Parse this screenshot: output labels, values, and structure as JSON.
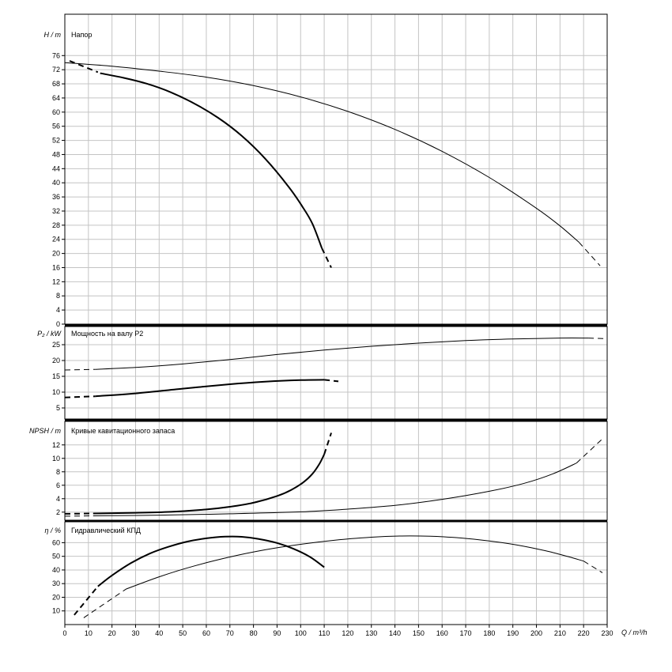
{
  "page": {
    "background": "#ffffff",
    "colors": {
      "grid": "#c4c4c4",
      "axis": "#000000",
      "curve": "#000000"
    },
    "x_axis": {
      "label": "Q / m³/h",
      "min": 0,
      "max": 230,
      "tick_step": 10,
      "tick_labels": [
        "0",
        "10",
        "20",
        "30",
        "40",
        "50",
        "60",
        "70",
        "80",
        "90",
        "100",
        "110",
        "120",
        "130",
        "140",
        "150",
        "160",
        "170",
        "180",
        "190",
        "200",
        "210",
        "220",
        "230"
      ]
    }
  },
  "chart_data": [
    {
      "type": "line",
      "title": "Напор",
      "ylabel": "H / m",
      "ylim": [
        0,
        87.7
      ],
      "yticks": [
        0,
        4,
        8,
        12,
        16,
        20,
        24,
        28,
        32,
        36,
        40,
        44,
        48,
        52,
        56,
        60,
        64,
        68,
        72,
        76
      ],
      "grid": true,
      "series": [
        {
          "name": "head-curve-full",
          "width": 1,
          "segments": [
            {
              "dash": false,
              "points": [
                [
                  0,
                  74
                ],
                [
                  20,
                  73
                ],
                [
                  40,
                  71.6
                ],
                [
                  60,
                  69.9
                ],
                [
                  80,
                  67.5
                ],
                [
                  100,
                  64.3
                ],
                [
                  120,
                  60.2
                ],
                [
                  140,
                  55.1
                ],
                [
                  160,
                  48.9
                ],
                [
                  180,
                  41.5
                ],
                [
                  200,
                  32.8
                ],
                [
                  210,
                  27.8
                ],
                [
                  218,
                  23.2
                ]
              ]
            },
            {
              "dash": true,
              "points": [
                [
                  218,
                  23.2
                ],
                [
                  227,
                  16.5
                ]
              ]
            }
          ]
        },
        {
          "name": "head-curve-selected",
          "width": 2,
          "segments": [
            {
              "dash": true,
              "points": [
                [
                  2,
                  74.5
                ],
                [
                  14,
                  71.3
                ]
              ]
            },
            {
              "dash": false,
              "points": [
                [
                  15,
                  71
                ],
                [
                  25,
                  69.7
                ],
                [
                  35,
                  68
                ],
                [
                  45,
                  65.6
                ],
                [
                  55,
                  62.4
                ],
                [
                  65,
                  58.4
                ],
                [
                  75,
                  53.3
                ],
                [
                  85,
                  46.8
                ],
                [
                  95,
                  38.8
                ],
                [
                  101,
                  33
                ],
                [
                  105,
                  28.4
                ],
                [
                  109,
                  21.5
                ]
              ]
            },
            {
              "dash": true,
              "points": [
                [
                  109,
                  21.5
                ],
                [
                  113,
                  16
                ]
              ]
            }
          ]
        }
      ]
    },
    {
      "type": "line",
      "title": "Мощность на валу P2",
      "ylabel": "P₂ / kW",
      "ylim": [
        1.5,
        30.75
      ],
      "yticks": [
        5,
        10,
        15,
        20,
        25
      ],
      "grid": true,
      "series": [
        {
          "name": "power-curve-full",
          "width": 1,
          "segments": [
            {
              "dash": true,
              "points": [
                [
                  0,
                  17
                ],
                [
                  13,
                  17.2
                ]
              ]
            },
            {
              "dash": false,
              "points": [
                [
                  13,
                  17.2
                ],
                [
                  30,
                  17.8
                ],
                [
                  50,
                  18.9
                ],
                [
                  70,
                  20.3
                ],
                [
                  90,
                  21.9
                ],
                [
                  110,
                  23.3
                ],
                [
                  130,
                  24.5
                ],
                [
                  150,
                  25.5
                ],
                [
                  170,
                  26.3
                ],
                [
                  190,
                  26.8
                ],
                [
                  210,
                  27.1
                ],
                [
                  222,
                  27.1
                ]
              ]
            },
            {
              "dash": true,
              "points": [
                [
                  222,
                  27.1
                ],
                [
                  230,
                  26.9
                ]
              ]
            }
          ]
        },
        {
          "name": "power-curve-selected",
          "width": 2,
          "segments": [
            {
              "dash": true,
              "points": [
                [
                  0,
                  8.3
                ],
                [
                  13,
                  8.7
                ]
              ]
            },
            {
              "dash": false,
              "points": [
                [
                  13,
                  8.7
                ],
                [
                  30,
                  9.6
                ],
                [
                  50,
                  11.1
                ],
                [
                  70,
                  12.5
                ],
                [
                  85,
                  13.3
                ],
                [
                  100,
                  13.8
                ],
                [
                  110,
                  13.9
                ]
              ]
            },
            {
              "dash": true,
              "points": [
                [
                  110,
                  13.9
                ],
                [
                  116,
                  13.4
                ]
              ]
            }
          ]
        }
      ]
    },
    {
      "type": "line",
      "title": "Кривые кавитационного запаса",
      "ylabel": "NPSH / m",
      "ylim": [
        0.8,
        15.5
      ],
      "yticks": [
        2,
        4,
        6,
        8,
        10,
        12
      ],
      "grid": true,
      "series": [
        {
          "name": "npsh-curve-selected",
          "width": 2,
          "segments": [
            {
              "dash": true,
              "points": [
                [
                  0,
                  1.75
                ],
                [
                  12,
                  1.8
                ]
              ]
            },
            {
              "dash": false,
              "points": [
                [
                  12,
                  1.8
                ],
                [
                  30,
                  1.9
                ],
                [
                  45,
                  2.05
                ],
                [
                  60,
                  2.4
                ],
                [
                  70,
                  2.8
                ],
                [
                  80,
                  3.4
                ],
                [
                  90,
                  4.4
                ],
                [
                  96,
                  5.3
                ],
                [
                  101,
                  6.4
                ],
                [
                  105,
                  7.7
                ],
                [
                  108,
                  9.2
                ],
                [
                  110,
                  10.6
                ]
              ]
            },
            {
              "dash": true,
              "points": [
                [
                  110,
                  10.6
                ],
                [
                  113,
                  13.8
                ]
              ]
            }
          ]
        },
        {
          "name": "npsh-curve-full",
          "width": 1,
          "segments": [
            {
              "dash": true,
              "points": [
                [
                  0,
                  1.4
                ],
                [
                  12,
                  1.45
                ]
              ]
            },
            {
              "dash": false,
              "points": [
                [
                  12,
                  1.45
                ],
                [
                  40,
                  1.55
                ],
                [
                  70,
                  1.75
                ],
                [
                  100,
                  2.05
                ],
                [
                  120,
                  2.45
                ],
                [
                  140,
                  3.0
                ],
                [
                  160,
                  3.9
                ],
                [
                  180,
                  5.1
                ],
                [
                  195,
                  6.3
                ],
                [
                  207,
                  7.7
                ],
                [
                  217,
                  9.3
                ]
              ]
            },
            {
              "dash": true,
              "points": [
                [
                  217,
                  9.3
                ],
                [
                  228,
                  12.9
                ]
              ]
            }
          ]
        }
      ]
    },
    {
      "type": "line",
      "title": "Гидравлический КПД",
      "ylabel": "η / %",
      "ylim": [
        0,
        75.3
      ],
      "yticks": [
        10,
        20,
        30,
        40,
        50,
        60
      ],
      "grid": true,
      "series": [
        {
          "name": "efficiency-curve-selected",
          "width": 2,
          "segments": [
            {
              "dash": true,
              "points": [
                [
                  4,
                  7
                ],
                [
                  14,
                  28
                ]
              ]
            },
            {
              "dash": false,
              "points": [
                [
                  14,
                  28
                ],
                [
                  20,
                  36
                ],
                [
                  28,
                  45
                ],
                [
                  36,
                  52
                ],
                [
                  44,
                  57
                ],
                [
                  52,
                  60.8
                ],
                [
                  60,
                  63.2
                ],
                [
                  68,
                  64.4
                ],
                [
                  75,
                  64.3
                ],
                [
                  82,
                  62.8
                ],
                [
                  90,
                  59.8
                ],
                [
                  97,
                  55.5
                ],
                [
                  104,
                  49.5
                ],
                [
                  110,
                  42
                ]
              ]
            }
          ]
        },
        {
          "name": "efficiency-curve-full",
          "width": 1,
          "segments": [
            {
              "dash": true,
              "points": [
                [
                  8,
                  5
                ],
                [
                  26,
                  26
                ]
              ]
            },
            {
              "dash": false,
              "points": [
                [
                  26,
                  26
                ],
                [
                  40,
                  35
                ],
                [
                  55,
                  43
                ],
                [
                  70,
                  49.5
                ],
                [
                  85,
                  54.8
                ],
                [
                  100,
                  58.8
                ],
                [
                  115,
                  61.9
                ],
                [
                  130,
                  64
                ],
                [
                  142,
                  64.9
                ],
                [
                  155,
                  64.7
                ],
                [
                  168,
                  63.4
                ],
                [
                  180,
                  61.3
                ],
                [
                  192,
                  58.2
                ],
                [
                  204,
                  54
                ],
                [
                  214,
                  49.5
                ],
                [
                  220,
                  46.5
                ]
              ]
            },
            {
              "dash": true,
              "points": [
                [
                  220,
                  46.5
                ],
                [
                  228,
                  38
                ]
              ]
            }
          ]
        }
      ]
    }
  ]
}
